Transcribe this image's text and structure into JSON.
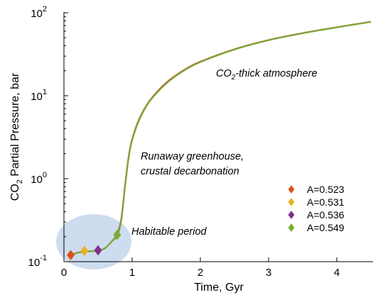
{
  "chart_data": {
    "type": "line",
    "xlabel": "Time, Gyr",
    "ylabel_main": "CO",
    "ylabel_sub": "2",
    "ylabel_rest": " Partial Pressure, bar",
    "y_scale": "log",
    "xlim": [
      0,
      4.5
    ],
    "ylim": [
      0.1,
      100
    ],
    "grid": false,
    "x_ticks": [
      {
        "value": 0,
        "label": "0"
      },
      {
        "value": 1,
        "label": "1"
      },
      {
        "value": 2,
        "label": "2"
      },
      {
        "value": 3,
        "label": "3"
      },
      {
        "value": 4,
        "label": "4"
      }
    ],
    "y_ticks": [
      {
        "value": 0.1,
        "base": "10",
        "exp": "-1"
      },
      {
        "value": 1,
        "base": "10",
        "exp": "0"
      },
      {
        "value": 10,
        "base": "10",
        "exp": "1"
      },
      {
        "value": 100,
        "base": "10",
        "exp": "2"
      }
    ],
    "annotations": {
      "thick_main": "CO",
      "thick_sub": "2",
      "thick_rest": "-thick atmosphere",
      "runaway_line1": "Runaway greenhouse,",
      "runaway_line2": "crustal decarbonation",
      "habitable": "Habitable period"
    },
    "legend_position": "lower-right",
    "series": [
      {
        "name": "A=0.523",
        "color": "#d95319",
        "marker": {
          "x": 0.1,
          "y": 0.12
        },
        "x": [
          0.1,
          0.2,
          0.3,
          0.4,
          0.5,
          0.6,
          0.7,
          0.78,
          0.84,
          0.9,
          0.95,
          1.0,
          1.1,
          1.25,
          1.5,
          1.75,
          2.0,
          2.5,
          3.0,
          3.5,
          4.0,
          4.5
        ],
        "y": [
          0.12,
          0.128,
          0.132,
          0.134,
          0.136,
          0.145,
          0.175,
          0.215,
          0.33,
          0.9,
          1.9,
          3.0,
          5.2,
          8.6,
          14.4,
          20.2,
          25.8,
          36.4,
          47,
          57,
          67,
          78
        ]
      },
      {
        "name": "A=0.531",
        "color": "#edb120",
        "marker": {
          "x": 0.3,
          "y": 0.135
        },
        "x": [
          0.1,
          0.2,
          0.3,
          0.4,
          0.5,
          0.6,
          0.7,
          0.78,
          0.84,
          0.9,
          0.95,
          1.0,
          1.1,
          1.25,
          1.5,
          1.75,
          2.0,
          2.5,
          3.0,
          3.5,
          4.0,
          4.5
        ],
        "y": [
          0.12,
          0.128,
          0.132,
          0.134,
          0.136,
          0.145,
          0.175,
          0.21,
          0.32,
          0.88,
          1.85,
          2.95,
          5.1,
          8.5,
          14.2,
          20,
          25.6,
          36.2,
          46.8,
          56.8,
          66.8,
          77.8
        ]
      },
      {
        "name": "A=0.536",
        "color": "#7e2f8e",
        "marker": {
          "x": 0.5,
          "y": 0.137
        },
        "x": [
          0.1,
          0.2,
          0.3,
          0.4,
          0.5,
          0.6,
          0.7,
          0.78,
          0.84,
          0.9,
          0.95,
          1.0,
          1.1,
          1.25,
          1.5,
          1.75,
          2.0,
          2.5,
          3.0,
          3.5,
          4.0,
          4.5
        ],
        "y": [
          0.12,
          0.128,
          0.132,
          0.134,
          0.136,
          0.145,
          0.175,
          0.21,
          0.32,
          0.87,
          1.83,
          2.92,
          5.05,
          8.45,
          14.1,
          19.9,
          25.5,
          36.1,
          46.7,
          56.7,
          66.7,
          77.7
        ]
      },
      {
        "name": "A=0.549",
        "color": "#77ac30",
        "marker": {
          "x": 0.78,
          "y": 0.21
        },
        "x": [
          0.1,
          0.2,
          0.3,
          0.4,
          0.5,
          0.6,
          0.7,
          0.78,
          0.84,
          0.9,
          0.95,
          1.0,
          1.1,
          1.25,
          1.5,
          1.75,
          2.0,
          2.5,
          3.0,
          3.5,
          4.0,
          4.5
        ],
        "y": [
          0.12,
          0.128,
          0.132,
          0.134,
          0.136,
          0.145,
          0.175,
          0.205,
          0.31,
          0.85,
          1.8,
          2.9,
          5.0,
          8.4,
          14.0,
          19.8,
          25.4,
          36.0,
          46.6,
          56.6,
          66.6,
          77.6
        ]
      }
    ]
  }
}
